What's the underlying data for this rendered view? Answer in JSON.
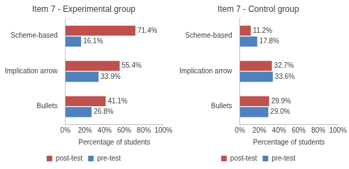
{
  "chart_data": [
    {
      "type": "bar",
      "orientation": "horizontal",
      "title": "Item 7 - Experimental group",
      "categories": [
        "Scheme-based",
        "Implication arrow",
        "Bullets"
      ],
      "series": [
        {
          "name": "post-test",
          "color": "#c0504d",
          "values": [
            71.4,
            55.4,
            41.1
          ],
          "value_labels": [
            "71.4%",
            "55.4%",
            "41.1%"
          ]
        },
        {
          "name": "pre-test",
          "color": "#4f81bd",
          "values": [
            16.1,
            33.9,
            26.8
          ],
          "value_labels": [
            "16.1%",
            "33.9%",
            "26.8%"
          ]
        }
      ],
      "x_label": "Percentage of students",
      "xlim": [
        0,
        100
      ],
      "xticks": [
        {
          "value": 0,
          "label": "0%"
        },
        {
          "value": 20,
          "label": "20%"
        },
        {
          "value": 40,
          "label": "40%"
        },
        {
          "value": 60,
          "label": "60%"
        },
        {
          "value": 80,
          "label": "80%"
        },
        {
          "value": 100,
          "label": "100%"
        }
      ],
      "grid": false,
      "data_labels": true,
      "legend": "bottom"
    },
    {
      "type": "bar",
      "orientation": "horizontal",
      "title": "Item 7 - Control group",
      "categories": [
        "Scheme-based",
        "Implication arrow",
        "Bullets"
      ],
      "series": [
        {
          "name": "post-test",
          "color": "#c0504d",
          "values": [
            11.2,
            32.7,
            29.9
          ],
          "value_labels": [
            "11.2%",
            "32.7%",
            "29.9%"
          ]
        },
        {
          "name": "pre-test",
          "color": "#4f81bd",
          "values": [
            17.8,
            33.6,
            29.0
          ],
          "value_labels": [
            "17.8%",
            "33.6%",
            "29.0%"
          ]
        }
      ],
      "x_label": "Percentage of students",
      "xlim": [
        0,
        100
      ],
      "xticks": [
        {
          "value": 0,
          "label": "0%"
        },
        {
          "value": 20,
          "label": "20%"
        },
        {
          "value": 40,
          "label": "40%"
        },
        {
          "value": 60,
          "label": "60%"
        },
        {
          "value": 80,
          "label": "80%"
        },
        {
          "value": 100,
          "label": "100%"
        }
      ],
      "grid": false,
      "data_labels": true,
      "legend": "bottom"
    }
  ]
}
